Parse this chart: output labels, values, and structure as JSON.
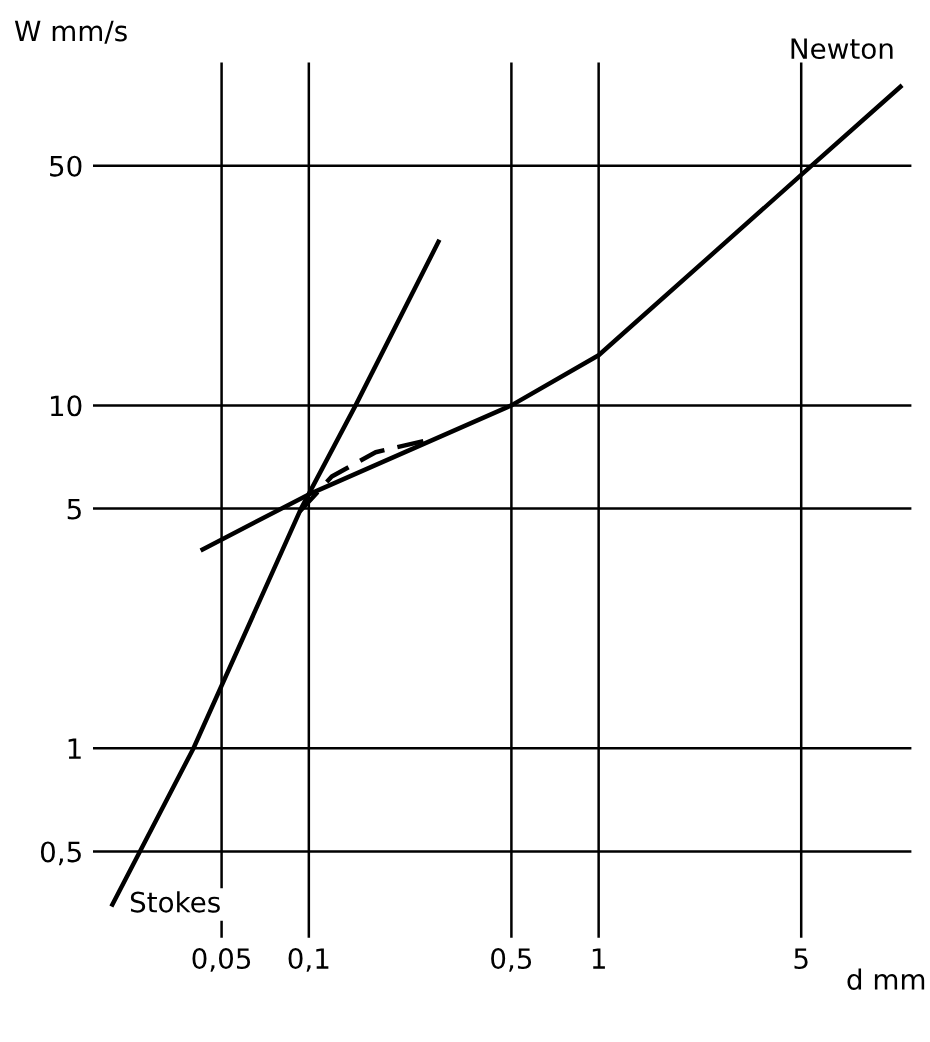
{
  "chart_data": {
    "type": "line",
    "xlabel": "d mm",
    "ylabel": "W mm/s",
    "log": "xy",
    "grid": true,
    "xlim": [
      0.018,
      12
    ],
    "ylim": [
      0.28,
      100
    ],
    "xticks": [
      {
        "value": 0.05,
        "label": "0,05"
      },
      {
        "value": 0.1,
        "label": "0,1"
      },
      {
        "value": 0.5,
        "label": "0,5"
      },
      1,
      5
    ],
    "yticks": [
      {
        "value": 0.5,
        "label": "0,5"
      },
      1,
      5,
      10,
      50
    ],
    "series": [
      {
        "name": "Stokes",
        "color": "#000000",
        "line_style": "solid",
        "x": [
          0.021,
          0.04,
          0.094,
          0.145,
          0.28
        ],
        "values": [
          0.35,
          1,
          5,
          10,
          30
        ]
      },
      {
        "name": "Newton",
        "color": "#000000",
        "line_style": "solid",
        "x": [
          0.043,
          0.1,
          0.5,
          1,
          5,
          11
        ],
        "values": [
          3.8,
          5.5,
          10,
          14,
          47,
          85
        ]
      },
      {
        "color": "#000000",
        "line_style": "dashed",
        "x": [
          0.093,
          0.12,
          0.17,
          0.27
        ],
        "values": [
          4.9,
          6.2,
          7.3,
          8.0
        ]
      }
    ]
  }
}
